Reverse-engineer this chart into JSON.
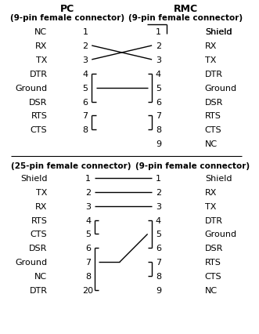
{
  "fig_width": 3.31,
  "fig_height": 4.27,
  "dpi": 100,
  "bg_color": "#ffffff",
  "top_title_left": "PC",
  "top_title_right": "RMC",
  "top_subtitle_left": "(9-pin female connector)",
  "top_subtitle_right": "(9-pin female connector)",
  "bottom_subtitle_left": "(25-pin female connector)",
  "bottom_subtitle_right": "(9-pin female connector)",
  "top_pc_pins": [
    {
      "pin": "1",
      "label": "NC"
    },
    {
      "pin": "2",
      "label": "RX"
    },
    {
      "pin": "3",
      "label": "TX"
    },
    {
      "pin": "4",
      "label": "DTR"
    },
    {
      "pin": "5",
      "label": "Ground"
    },
    {
      "pin": "6",
      "label": "DSR"
    },
    {
      "pin": "7",
      "label": "RTS"
    },
    {
      "pin": "8",
      "label": "CTS"
    }
  ],
  "top_rmc_pins": [
    {
      "pin": "1",
      "label": "Shield"
    },
    {
      "pin": "2",
      "label": "RX"
    },
    {
      "pin": "3",
      "label": "TX"
    },
    {
      "pin": "4",
      "label": "DTR"
    },
    {
      "pin": "5",
      "label": "Ground"
    },
    {
      "pin": "6",
      "label": "DSR"
    },
    {
      "pin": "7",
      "label": "RTS"
    },
    {
      "pin": "8",
      "label": "CTS"
    },
    {
      "pin": "9",
      "label": "NC"
    }
  ],
  "bot_left_pins": [
    {
      "pin": "1",
      "label": "Shield"
    },
    {
      "pin": "2",
      "label": "TX"
    },
    {
      "pin": "3",
      "label": "RX"
    },
    {
      "pin": "4",
      "label": "RTS"
    },
    {
      "pin": "5",
      "label": "CTS"
    },
    {
      "pin": "6",
      "label": "DSR"
    },
    {
      "pin": "7",
      "label": "Ground"
    },
    {
      "pin": "8",
      "label": "NC"
    },
    {
      "pin": "20",
      "label": "DTR"
    }
  ],
  "bot_right_pins": [
    {
      "pin": "1",
      "label": "Shield"
    },
    {
      "pin": "2",
      "label": "RX"
    },
    {
      "pin": "3",
      "label": "TX"
    },
    {
      "pin": "4",
      "label": "DTR"
    },
    {
      "pin": "5",
      "label": "Ground"
    },
    {
      "pin": "6",
      "label": "DSR"
    },
    {
      "pin": "7",
      "label": "RTS"
    },
    {
      "pin": "8",
      "label": "CTS"
    },
    {
      "pin": "9",
      "label": "NC"
    }
  ]
}
